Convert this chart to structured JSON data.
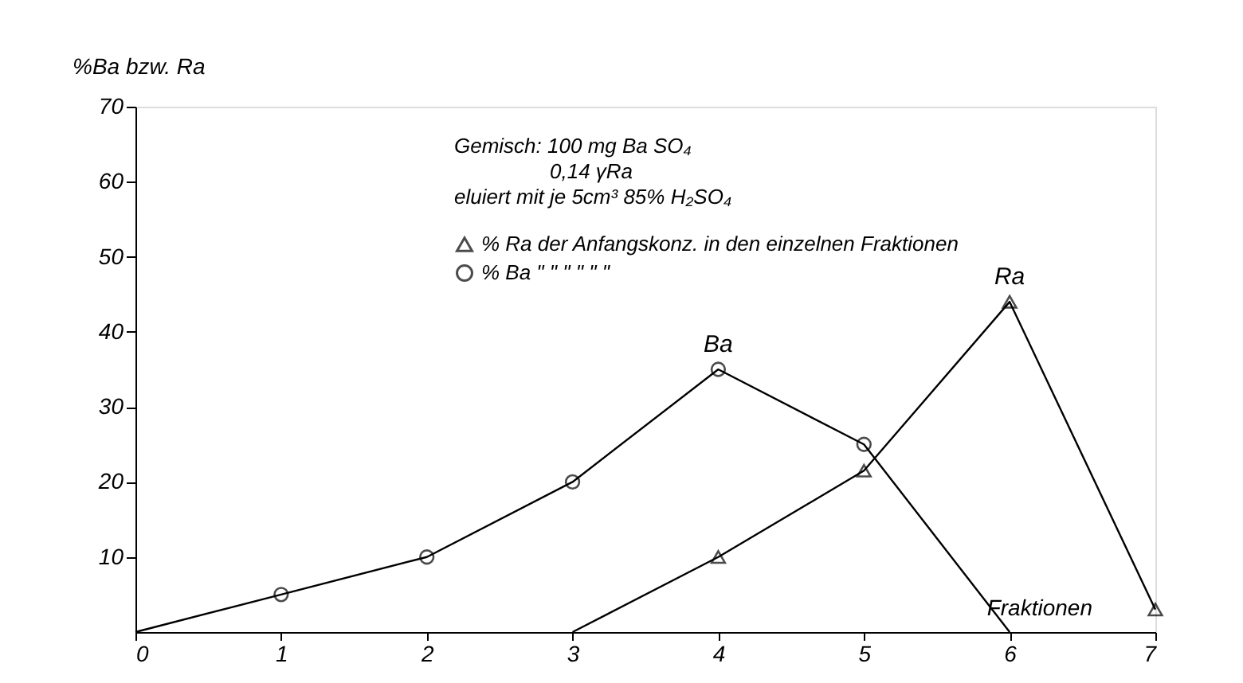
{
  "chart_data": {
    "type": "line",
    "xlabel": "Fraktionen",
    "ylabel": "%Ba bzw. Ra",
    "xlim": [
      0,
      7
    ],
    "xticks": [
      0,
      1,
      2,
      3,
      4,
      5,
      6,
      7
    ],
    "ylim": [
      0,
      70
    ],
    "yticks": [
      10,
      20,
      30,
      40,
      50,
      60,
      70
    ],
    "grid": false,
    "legend": "top",
    "series": [
      {
        "color": "#000000",
        "marker": "none",
        "x": [
          0,
          1,
          2,
          3,
          4,
          5,
          6
        ],
        "values": [
          0,
          5,
          10,
          20,
          35,
          25,
          0
        ]
      },
      {
        "color": "#000000",
        "marker": "none",
        "x": [
          3,
          4,
          5,
          6,
          7
        ],
        "values": [
          0,
          10,
          21.5,
          44,
          3
        ]
      },
      {
        "type": "scatter",
        "name": "% Ra der Anfangskonz. in den einzelnen Fraktionen",
        "color": "#000000",
        "marker": "triangle",
        "x": [
          4,
          5,
          6,
          7
        ],
        "values": [
          10,
          21.5,
          44,
          3
        ]
      },
      {
        "type": "scatter",
        "name": "% Ba \"  \"  \"  \"  \"  \"",
        "color": "#000000",
        "marker": "circle",
        "x": [
          1,
          2,
          3,
          4,
          5
        ],
        "values": [
          5,
          10,
          20,
          35,
          25
        ]
      }
    ],
    "annotations": [
      "Gemisch: 100 mg Ba SO₄",
      "0,14 γRa",
      "eluiert mit je 5cm³ 85% H₂SO₄",
      {
        "text": "Ba",
        "x": 4,
        "y": 35
      },
      {
        "text": "Ra",
        "x": 6,
        "y": 44
      }
    ]
  }
}
